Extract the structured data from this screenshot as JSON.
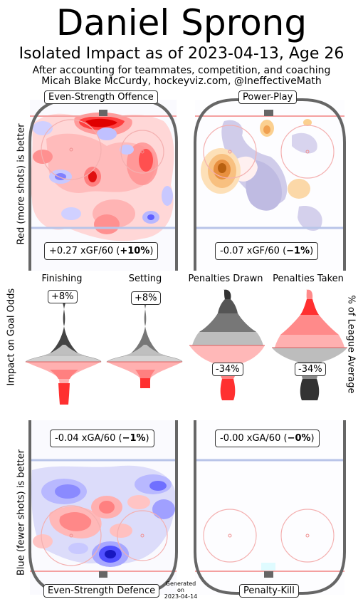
{
  "header": {
    "title": "Daniel Sprong",
    "subtitle": "Isolated Impact as of 2023-04-13, Age 26",
    "line1": "After accounting for teammates, competition, and coaching",
    "line2": "Micah Blake McCurdy, hockeyviz.com, @IneffectiveMath"
  },
  "side_labels": {
    "offence": "Red (more shots) is better",
    "middle": "Impact on Goal Odds",
    "defence": "Blue (fewer shots) is better",
    "right": "% of League Average"
  },
  "panels": {
    "es_offence": {
      "label": "Even-Strength Offence",
      "stat_value": "+0.27 xGF/60 (",
      "stat_pct": "+10%",
      "stat_close": ")"
    },
    "power_play": {
      "label": "Power-Play",
      "stat_value": "-0.07 xGF/60 (",
      "stat_pct": "−1%",
      "stat_close": ")"
    },
    "es_defence": {
      "label": "Even-Strength Defence",
      "stat_value": "-0.04 xGA/60 (",
      "stat_pct": "−1%",
      "stat_close": ")"
    },
    "penalty_kill": {
      "label": "Penalty-Kill",
      "stat_value": "-0.00 xGA/60 (",
      "stat_pct": "−0%",
      "stat_close": ")"
    }
  },
  "violins": {
    "finishing": {
      "label": "Finishing",
      "value": "+8%"
    },
    "setting": {
      "label": "Setting",
      "value": "+8%"
    },
    "penalties_drawn": {
      "label": "Penalties Drawn",
      "value": "-34%"
    },
    "penalties_taken": {
      "label": "Penalties Taken",
      "value": "-34%"
    }
  },
  "footer": {
    "gen1": "Generated",
    "gen2": "on",
    "gen3": "2023-04-14"
  },
  "colors": {
    "red": "#ff2a2a",
    "blue": "#3333ff",
    "orange": "#f0a030",
    "lavender": "#bdb8e0",
    "rink": "#666666"
  },
  "chart_data": {
    "type": "table",
    "rows": [
      {
        "metric": "Even-Strength Offence",
        "value": "+0.27 xGF/60",
        "pct": "+10%"
      },
      {
        "metric": "Power-Play",
        "value": "-0.07 xGF/60",
        "pct": "−1%"
      },
      {
        "metric": "Finishing",
        "pct": "+8%"
      },
      {
        "metric": "Setting",
        "pct": "+8%"
      },
      {
        "metric": "Penalties Drawn",
        "pct": "-34%"
      },
      {
        "metric": "Penalties Taken",
        "pct": "-34%"
      },
      {
        "metric": "Even-Strength Defence",
        "value": "-0.04 xGA/60",
        "pct": "−1%"
      },
      {
        "metric": "Penalty-Kill",
        "value": "-0.00 xGA/60",
        "pct": "−0%"
      }
    ]
  }
}
